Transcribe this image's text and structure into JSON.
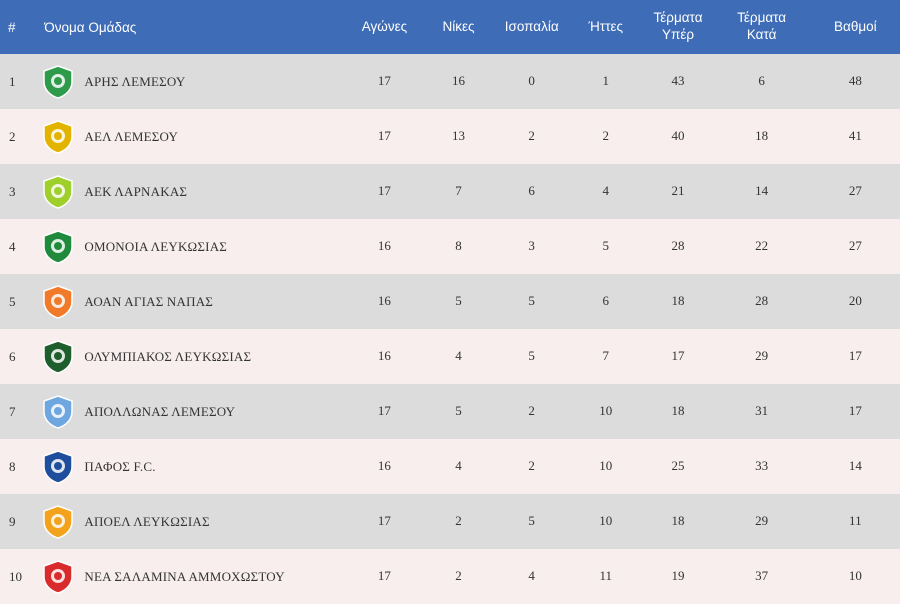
{
  "headers": {
    "pos": "#",
    "team": "Όνομα Ομάδας",
    "played": "Αγώνες",
    "wins": "Νίκες",
    "draws": "Ισοπαλία",
    "losses": "Ήττες",
    "goals_for_line1": "Τέρματα",
    "goals_for_line2": "Υπέρ",
    "goals_against_line1": "Τέρματα",
    "goals_against_line2": "Κατά",
    "points": "Βαθμοί"
  },
  "rows": [
    {
      "pos": "1",
      "team": "ΑΡΗΣ ΛΕΜΕΣΟΥ",
      "crest_icon": "aris-crest-icon",
      "crest_color": "#2e9b4a",
      "played": "17",
      "wins": "16",
      "draws": "0",
      "losses": "1",
      "gf": "43",
      "ga": "6",
      "pts": "48"
    },
    {
      "pos": "2",
      "team": "ΑΕΛ ΛΕΜΕΣΟΥ",
      "crest_icon": "ael-crest-icon",
      "crest_color": "#e2b400",
      "played": "17",
      "wins": "13",
      "draws": "2",
      "losses": "2",
      "gf": "40",
      "ga": "18",
      "pts": "41"
    },
    {
      "pos": "3",
      "team": "ΑΕΚ ΛΑΡΝΑΚΑΣ",
      "crest_icon": "aek-crest-icon",
      "crest_color": "#9fcf2a",
      "played": "17",
      "wins": "7",
      "draws": "6",
      "losses": "4",
      "gf": "21",
      "ga": "14",
      "pts": "27"
    },
    {
      "pos": "4",
      "team": "ΟΜΟΝΟΙΑ ΛΕΥΚΩΣΙΑΣ",
      "crest_icon": "omonoia-crest-icon",
      "crest_color": "#1f8a3c",
      "played": "16",
      "wins": "8",
      "draws": "3",
      "losses": "5",
      "gf": "28",
      "ga": "22",
      "pts": "27"
    },
    {
      "pos": "5",
      "team": "ΑΟΑΝ ΑΓΙΑΣ ΝΑΠΑΣ",
      "crest_icon": "aoan-crest-icon",
      "crest_color": "#f07a2a",
      "played": "16",
      "wins": "5",
      "draws": "5",
      "losses": "6",
      "gf": "18",
      "ga": "28",
      "pts": "20"
    },
    {
      "pos": "6",
      "team": "ΟΛΥΜΠΙΑΚΟΣ ΛΕΥΚΩΣΙΑΣ",
      "crest_icon": "olympiakos-crest-icon",
      "crest_color": "#1d5e2c",
      "played": "16",
      "wins": "4",
      "draws": "5",
      "losses": "7",
      "gf": "17",
      "ga": "29",
      "pts": "17"
    },
    {
      "pos": "7",
      "team": "ΑΠΟΛΛΩΝΑΣ ΛΕΜΕΣΟΥ",
      "crest_icon": "apollon-crest-icon",
      "crest_color": "#6ea6df",
      "played": "17",
      "wins": "5",
      "draws": "2",
      "losses": "10",
      "gf": "18",
      "ga": "31",
      "pts": "17"
    },
    {
      "pos": "8",
      "team": "ΠΑΦΟΣ F.C.",
      "crest_icon": "pafos-crest-icon",
      "crest_color": "#1f4f9c",
      "played": "16",
      "wins": "4",
      "draws": "2",
      "losses": "10",
      "gf": "25",
      "ga": "33",
      "pts": "14"
    },
    {
      "pos": "9",
      "team": "ΑΠΟΕΛ ΛΕΥΚΩΣΙΑΣ",
      "crest_icon": "apoel-crest-icon",
      "crest_color": "#f2a31b",
      "played": "17",
      "wins": "2",
      "draws": "5",
      "losses": "10",
      "gf": "18",
      "ga": "29",
      "pts": "11"
    },
    {
      "pos": "10",
      "team": "ΝΕΑ ΣΑΛΑΜΙΝΑ ΑΜΜΟΧΩΣΤΟΥ",
      "crest_icon": "nea-salamina-crest-icon",
      "crest_color": "#d92b2b",
      "played": "17",
      "wins": "2",
      "draws": "4",
      "losses": "11",
      "gf": "19",
      "ga": "37",
      "pts": "10"
    }
  ]
}
